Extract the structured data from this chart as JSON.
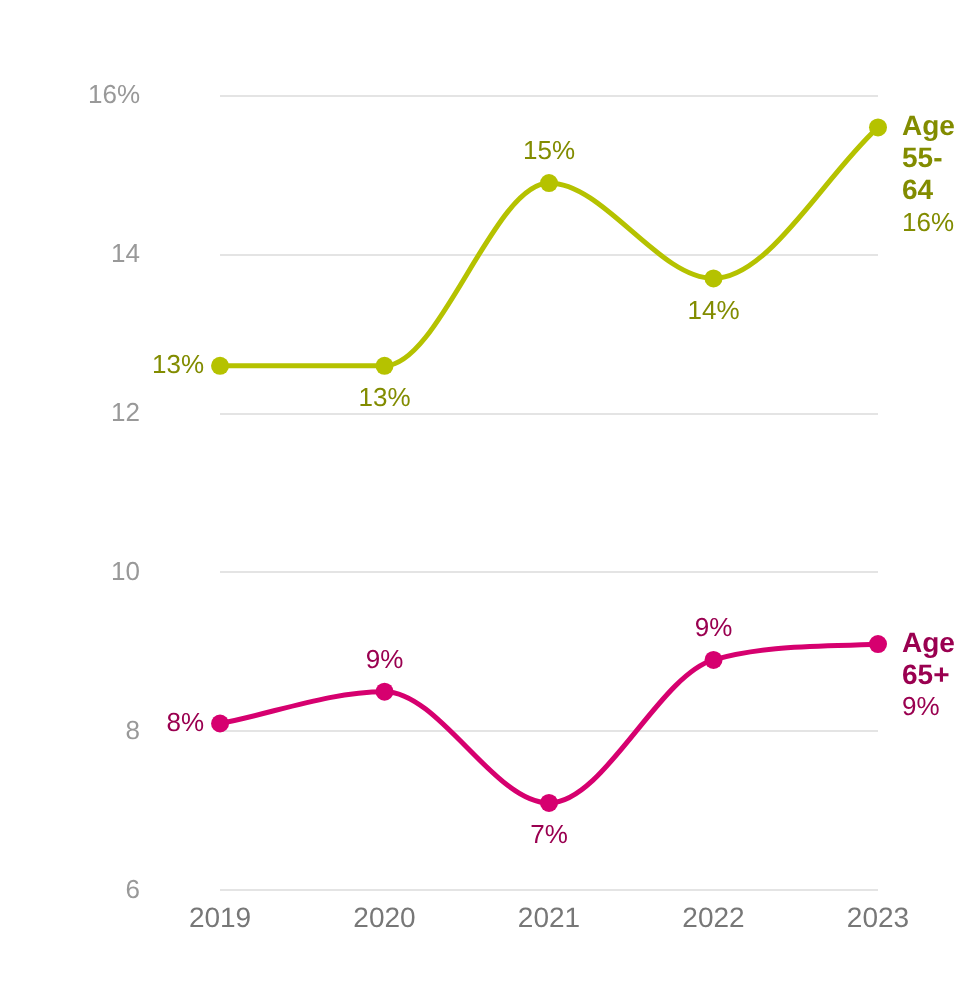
{
  "chart_data": {
    "type": "line",
    "categories": [
      "2019",
      "2020",
      "2021",
      "2022",
      "2023"
    ],
    "series": [
      {
        "name": "Age 55-64",
        "color": "#b5c200",
        "values": [
          12.6,
          12.6,
          14.9,
          13.7,
          15.6
        ],
        "value_labels": [
          "13%",
          "13%",
          "15%",
          "14%",
          "16%"
        ]
      },
      {
        "name": "Age 65+",
        "color": "#d6006f",
        "values": [
          8.1,
          8.5,
          7.1,
          8.9,
          9.1
        ],
        "value_labels": [
          "8%",
          "9%",
          "7%",
          "9%",
          "9%"
        ]
      }
    ],
    "ylim": [
      6,
      16
    ],
    "yticks": [
      6,
      8,
      10,
      12,
      14,
      {
        "value": 16,
        "label": "16%"
      }
    ],
    "grid": "y",
    "legend": false,
    "marker": "circle",
    "line_style": "solid"
  }
}
